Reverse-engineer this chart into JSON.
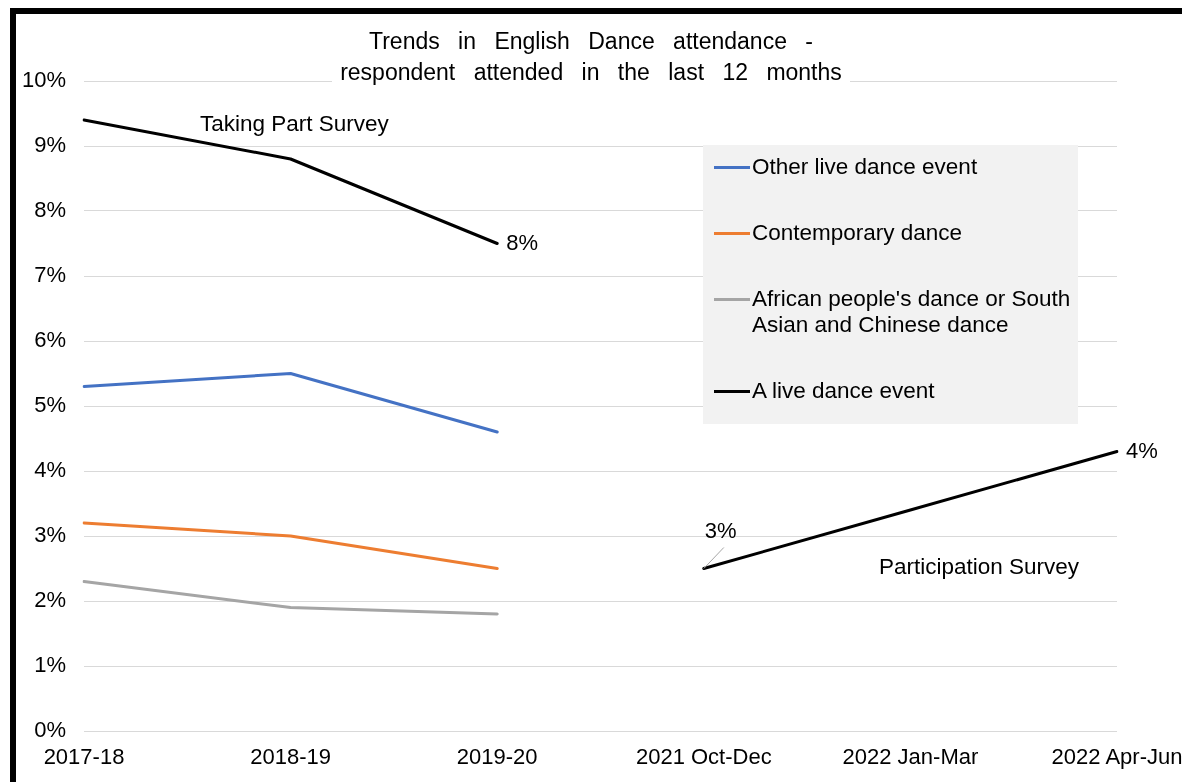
{
  "chart_data": {
    "type": "line",
    "title": "Trends in English Dance attendance - respondent attended in the last 12 months",
    "categories": [
      "2017-18",
      "2018-19",
      "2019-20",
      "2021 Oct-Dec",
      "2022 Jan-Mar",
      "2022 Apr-Jun"
    ],
    "series": [
      {
        "name": "Other live dance event",
        "color": "#4472c4",
        "values": [
          5.3,
          5.5,
          4.6,
          null,
          null,
          null
        ]
      },
      {
        "name": "Contemporary dance",
        "color": "#ed7d31",
        "values": [
          3.2,
          3.0,
          2.5,
          null,
          null,
          null
        ]
      },
      {
        "name": "African people's dance or South Asian and Chinese dance",
        "color": "#a5a5a5",
        "values": [
          2.3,
          1.9,
          1.8,
          null,
          null,
          null
        ]
      },
      {
        "name": "A live dance event",
        "color": "#000000",
        "values": [
          9.4,
          8.8,
          7.5,
          null,
          null,
          null
        ],
        "value_labels": [
          null,
          null,
          "8%",
          null,
          null,
          null
        ]
      },
      {
        "color": "#000000",
        "values": [
          null,
          null,
          null,
          2.5,
          3.4,
          4.3
        ],
        "value_labels": [
          null,
          null,
          null,
          "3%",
          null,
          "4%"
        ]
      }
    ],
    "ylim": [
      0,
      10
    ],
    "yticks": [
      {
        "value": 0,
        "label": "0%"
      },
      {
        "value": 1,
        "label": "1%"
      },
      {
        "value": 2,
        "label": "2%"
      },
      {
        "value": 3,
        "label": "3%"
      },
      {
        "value": 4,
        "label": "4%"
      },
      {
        "value": 5,
        "label": "5%"
      },
      {
        "value": 6,
        "label": "6%"
      },
      {
        "value": 7,
        "label": "7%"
      },
      {
        "value": 8,
        "label": "8%"
      },
      {
        "value": 9,
        "label": "9%"
      },
      {
        "value": 10,
        "label": "10%"
      }
    ],
    "grid": "y",
    "legend": "top right",
    "marker": "none",
    "line_style": "solid",
    "annotations": [
      "Taking Part Survey",
      "Participation Survey"
    ]
  }
}
